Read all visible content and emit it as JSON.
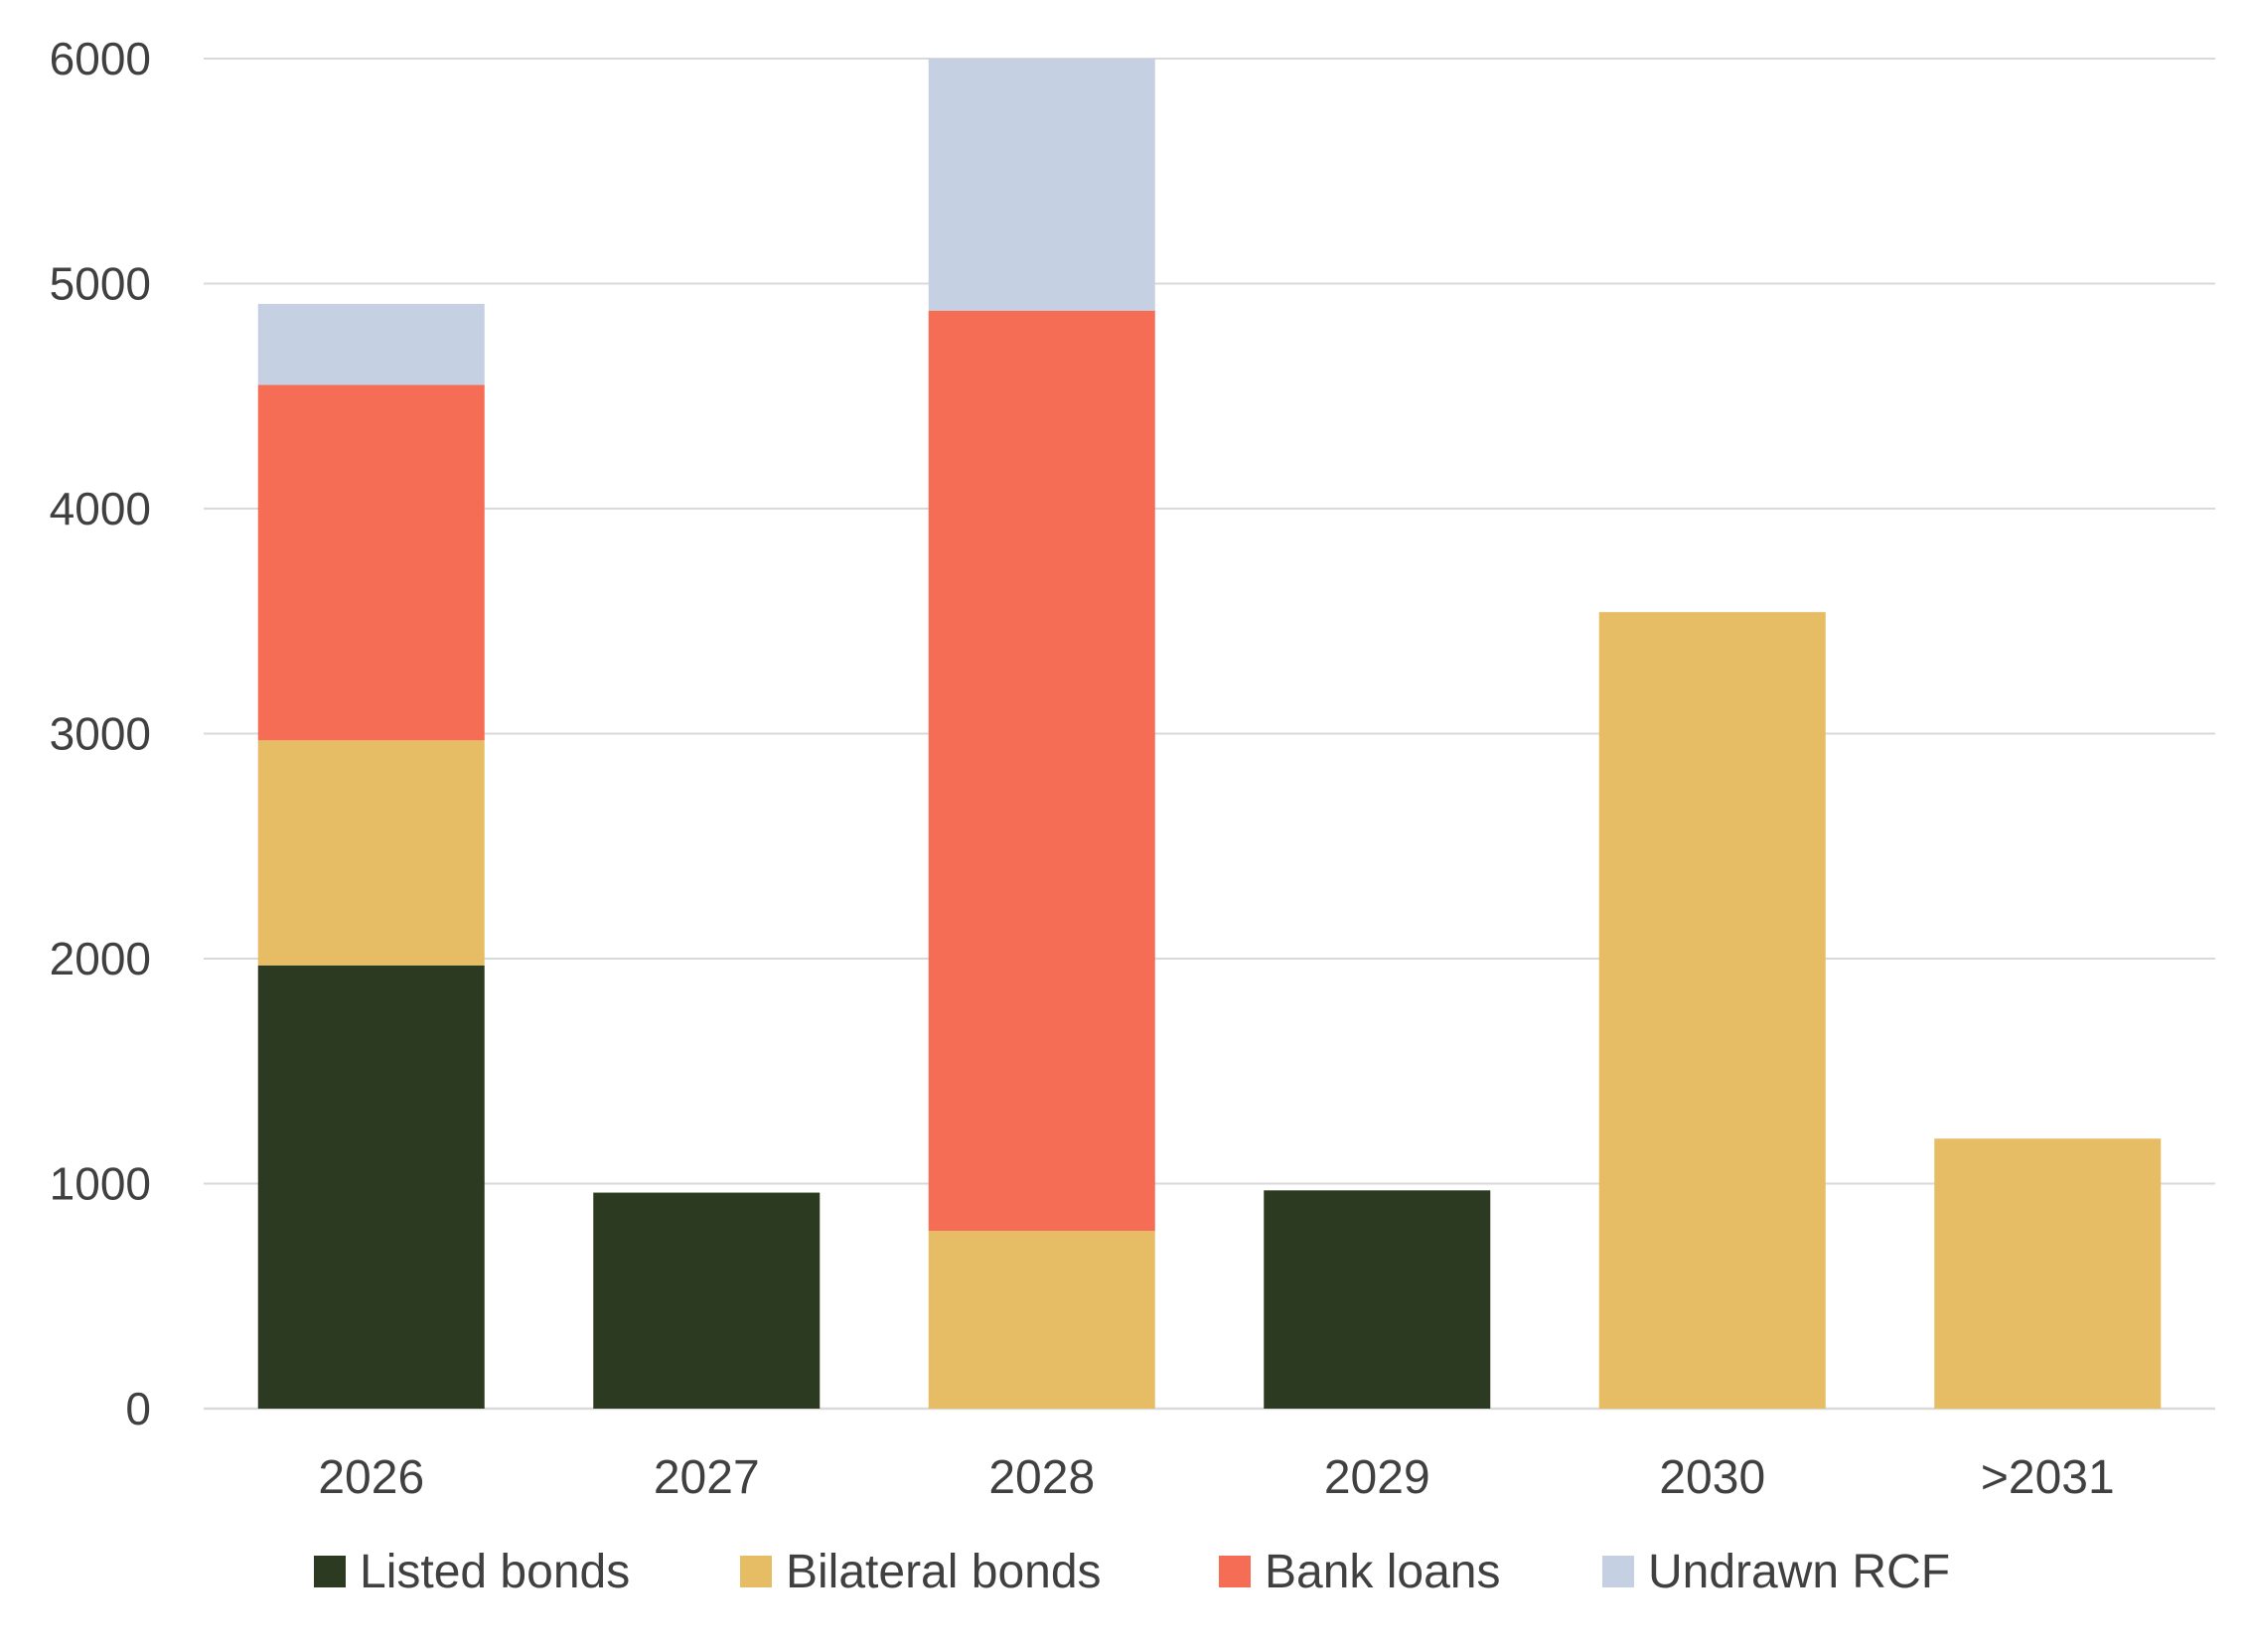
{
  "chart_data": {
    "type": "bar",
    "stacked": true,
    "title": "",
    "xlabel": "",
    "ylabel": "",
    "categories": [
      "2026",
      "2027",
      "2028",
      "2029",
      "2030",
      ">2031"
    ],
    "ylim": [
      0,
      6000
    ],
    "yticks": [
      "0",
      "1000",
      "2000",
      "3000",
      "4000",
      "5000",
      "6000"
    ],
    "grid": true,
    "legend_position": "bottom",
    "series": [
      {
        "name": "Listed bonds",
        "color": "#2b3a20",
        "values": [
          1970,
          960,
          0,
          970,
          0,
          0
        ]
      },
      {
        "name": "Bilateral bonds",
        "color": "#e6bd65",
        "values": [
          1000,
          0,
          790,
          0,
          3540,
          1200
        ]
      },
      {
        "name": "Bank loans",
        "color": "#f46d54",
        "values": [
          1580,
          0,
          4090,
          0,
          0,
          0
        ]
      },
      {
        "name": "Undrawn RCF",
        "color": "#c5d0e2",
        "values": [
          360,
          0,
          1120,
          0,
          0,
          0
        ]
      }
    ]
  }
}
